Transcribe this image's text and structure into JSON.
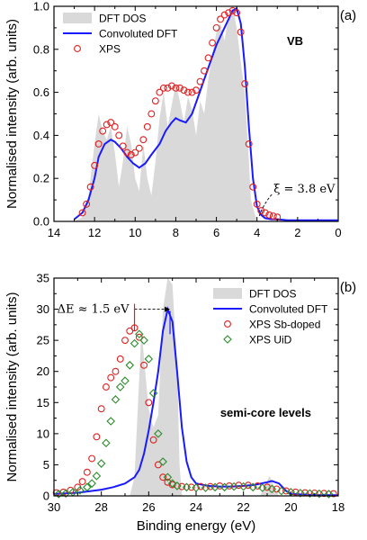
{
  "chart_data": [
    {
      "type": "area",
      "panel_tag": "(a)",
      "corner_label": "VB",
      "ylabel": "Normalised intensity (arb. units)",
      "xlabel": "",
      "xlim": [
        14,
        0
      ],
      "ylim": [
        0,
        1.0
      ],
      "x_reversed": true,
      "xticks": [
        14,
        12,
        10,
        8,
        6,
        4,
        2,
        0
      ],
      "yticks": [
        0.0,
        0.2,
        0.4,
        0.6,
        0.8,
        1.0
      ],
      "ytick_labels": [
        "0.0",
        "0.2",
        "0.4",
        "0.6",
        "0.8",
        "1.0"
      ],
      "legend_position": "top-left",
      "annotation": {
        "text": "ξ = 3.8 eV",
        "x": 3.8,
        "y": 0.0
      },
      "series": [
        {
          "name": "DFT DOS",
          "kind": "filled-area",
          "color": "#d9d9d9",
          "x": [
            13,
            12.6,
            12.3,
            12.0,
            11.8,
            11.6,
            11.4,
            11.2,
            11.0,
            10.8,
            10.6,
            10.4,
            10.2,
            10.0,
            9.8,
            9.6,
            9.4,
            9.2,
            9.0,
            8.8,
            8.6,
            8.4,
            8.2,
            8.0,
            7.8,
            7.6,
            7.4,
            7.2,
            7.0,
            6.8,
            6.6,
            6.4,
            6.2,
            6.0,
            5.8,
            5.6,
            5.4,
            5.2,
            5.0,
            4.8,
            4.6,
            4.4,
            4.3,
            4.1,
            4.0,
            3.9
          ],
          "values": [
            0.0,
            0.02,
            0.12,
            0.36,
            0.5,
            0.42,
            0.38,
            0.44,
            0.32,
            0.16,
            0.28,
            0.44,
            0.36,
            0.2,
            0.14,
            0.36,
            0.2,
            0.12,
            0.28,
            0.48,
            0.6,
            0.44,
            0.54,
            0.64,
            0.56,
            0.46,
            0.58,
            0.52,
            0.4,
            0.56,
            0.5,
            0.66,
            0.78,
            0.88,
            0.92,
            0.84,
            0.96,
            1.0,
            0.9,
            0.74,
            0.6,
            0.28,
            0.1,
            0.03,
            0.01,
            0.0
          ]
        },
        {
          "name": "Convoluted DFT",
          "kind": "line",
          "color": "#1a1aff",
          "x": [
            13.0,
            12.6,
            12.3,
            12.0,
            11.8,
            11.5,
            11.2,
            11.0,
            10.7,
            10.4,
            10.1,
            9.8,
            9.5,
            9.2,
            8.8,
            8.5,
            8.2,
            8.0,
            7.8,
            7.5,
            7.2,
            6.9,
            6.6,
            6.3,
            6.0,
            5.7,
            5.4,
            5.2,
            5.0,
            4.8,
            4.6,
            4.4,
            4.2,
            4.0,
            3.8,
            3.6,
            3.3,
            3.0,
            2.5,
            2.0,
            1.5,
            1.0,
            0.5,
            0.0
          ],
          "values": [
            0.01,
            0.04,
            0.1,
            0.2,
            0.3,
            0.36,
            0.38,
            0.37,
            0.34,
            0.3,
            0.27,
            0.25,
            0.27,
            0.31,
            0.36,
            0.42,
            0.46,
            0.48,
            0.47,
            0.46,
            0.5,
            0.58,
            0.66,
            0.74,
            0.82,
            0.88,
            0.94,
            0.98,
            0.99,
            0.92,
            0.72,
            0.44,
            0.2,
            0.07,
            0.03,
            0.015,
            0.01,
            0.01,
            0.005,
            0.005,
            0.005,
            0.005,
            0.005,
            0.005
          ]
        },
        {
          "name": "XPS",
          "kind": "scatter",
          "color": "#e02020",
          "x": [
            12.6,
            12.4,
            12.2,
            12.0,
            11.8,
            11.6,
            11.4,
            11.2,
            11.0,
            10.8,
            10.6,
            10.4,
            10.2,
            10.0,
            9.8,
            9.6,
            9.4,
            9.2,
            9.0,
            8.8,
            8.6,
            8.4,
            8.2,
            8.0,
            7.8,
            7.6,
            7.4,
            7.2,
            7.0,
            6.8,
            6.6,
            6.4,
            6.2,
            6.0,
            5.8,
            5.6,
            5.4,
            5.2,
            5.0,
            4.8,
            4.6,
            4.4,
            4.2,
            4.0,
            3.8,
            3.6,
            3.4,
            3.2,
            3.0
          ],
          "values": [
            0.04,
            0.08,
            0.16,
            0.26,
            0.36,
            0.42,
            0.45,
            0.46,
            0.44,
            0.4,
            0.35,
            0.32,
            0.31,
            0.32,
            0.34,
            0.38,
            0.44,
            0.5,
            0.56,
            0.6,
            0.62,
            0.62,
            0.63,
            0.62,
            0.62,
            0.61,
            0.6,
            0.6,
            0.61,
            0.65,
            0.7,
            0.76,
            0.83,
            0.9,
            0.94,
            0.96,
            0.97,
            0.98,
            0.97,
            0.88,
            0.64,
            0.36,
            0.16,
            0.08,
            0.05,
            0.04,
            0.03,
            0.025,
            0.02
          ]
        }
      ]
    },
    {
      "type": "area",
      "panel_tag": "(b)",
      "corner_label": "semi-core levels",
      "ylabel": "Normalised intensity (arb. units)",
      "xlabel": "Binding energy (eV)",
      "xlim": [
        30,
        18
      ],
      "ylim": [
        0,
        35
      ],
      "x_reversed": true,
      "xticks": [
        30,
        28,
        26,
        24,
        22,
        20,
        18
      ],
      "yticks": [
        0,
        5,
        10,
        15,
        20,
        25,
        30,
        35
      ],
      "ytick_labels": [
        "0",
        "5",
        "10",
        "15",
        "20",
        "25",
        "30",
        "35"
      ],
      "legend_position": "top-right",
      "annotation": {
        "text": "ΔE ≈ 1.5 eV",
        "from_x": 26.6,
        "to_x": 25.1,
        "y": 30
      },
      "series": [
        {
          "name": "DFT DOS",
          "kind": "filled-area",
          "color": "#d9d9d9",
          "x": [
            26.8,
            26.6,
            26.4,
            26.3,
            26.2,
            26.0,
            25.8,
            25.6,
            25.4,
            25.2,
            25.0,
            24.8,
            24.7,
            24.6,
            21.3,
            21.1,
            20.9,
            20.7,
            20.5
          ],
          "values": [
            0.0,
            3.0,
            19.0,
            27.0,
            22.0,
            14.0,
            11.0,
            13.0,
            30.0,
            35.0,
            34.0,
            21.0,
            5.0,
            0.0,
            0.0,
            1.5,
            3.2,
            1.5,
            0.0
          ]
        },
        {
          "name": "Convoluted DFT",
          "kind": "line",
          "color": "#1a1aff",
          "x": [
            30,
            29,
            28,
            27.5,
            27.0,
            26.6,
            26.4,
            26.2,
            26.0,
            25.8,
            25.6,
            25.4,
            25.2,
            25.0,
            24.8,
            24.6,
            24.4,
            24.2,
            24.0,
            23.5,
            23.0,
            22.5,
            22.0,
            21.5,
            21.0,
            20.8,
            20.5,
            20.2,
            20.0,
            19.0,
            18.0
          ],
          "values": [
            0.3,
            0.5,
            1.0,
            1.4,
            2.0,
            3.0,
            4.2,
            6.8,
            10.5,
            15.0,
            20.0,
            26.5,
            30.0,
            28.0,
            20.0,
            11.0,
            5.5,
            3.0,
            2.0,
            1.6,
            1.5,
            1.5,
            1.6,
            1.8,
            2.2,
            2.4,
            2.0,
            0.8,
            0.3,
            0.15,
            0.1
          ]
        },
        {
          "name": "XPS Sb-doped",
          "kind": "scatter",
          "color": "#e02020",
          "x": [
            29.9,
            29.6,
            29.3,
            29.0,
            28.8,
            28.6,
            28.4,
            28.2,
            28.0,
            27.8,
            27.6,
            27.4,
            27.2,
            27.0,
            26.8,
            26.6,
            26.4,
            26.2,
            26.0,
            25.8,
            25.6,
            25.4,
            25.2,
            25.0,
            24.6,
            24.2,
            23.8,
            23.4,
            23.0,
            22.6,
            22.2,
            21.8,
            21.4,
            21.0,
            20.6,
            20.2,
            19.8,
            19.4,
            19.0,
            18.6,
            18.2
          ],
          "values": [
            0.5,
            0.6,
            0.9,
            1.4,
            2.3,
            3.8,
            6.0,
            9.5,
            14.0,
            17.5,
            19.0,
            20.0,
            22.0,
            25.0,
            26.5,
            27.0,
            25.5,
            21.0,
            15.0,
            9.0,
            5.0,
            3.0,
            2.2,
            1.8,
            1.5,
            1.4,
            1.5,
            1.5,
            1.6,
            1.6,
            1.7,
            1.7,
            1.6,
            1.4,
            1.1,
            0.8,
            0.6,
            0.5,
            0.45,
            0.4,
            0.35
          ]
        },
        {
          "name": "XPS UiD",
          "kind": "scatter",
          "color": "#2a8a2a",
          "x": [
            29.8,
            29.5,
            29.2,
            28.9,
            28.6,
            28.4,
            28.2,
            28.0,
            27.8,
            27.6,
            27.4,
            27.2,
            27.0,
            26.8,
            26.6,
            26.4,
            26.2,
            26.0,
            25.8,
            25.6,
            25.4,
            25.2,
            25.0,
            24.8,
            24.4,
            24.0,
            23.6,
            23.2,
            22.8,
            22.4,
            22.0,
            21.6,
            21.2,
            20.8,
            20.4,
            20.0,
            19.6,
            19.2,
            18.8,
            18.4
          ],
          "values": [
            0.3,
            0.4,
            0.6,
            0.9,
            1.4,
            2.0,
            3.2,
            5.2,
            8.5,
            12.0,
            15.5,
            17.5,
            18.5,
            21.0,
            24.5,
            26.0,
            25.0,
            22.0,
            16.5,
            10.0,
            5.5,
            3.0,
            2.0,
            1.6,
            1.4,
            1.3,
            1.3,
            1.4,
            1.4,
            1.5,
            1.5,
            1.4,
            1.3,
            1.1,
            0.8,
            0.6,
            0.45,
            0.4,
            0.35,
            0.3
          ]
        }
      ]
    }
  ]
}
